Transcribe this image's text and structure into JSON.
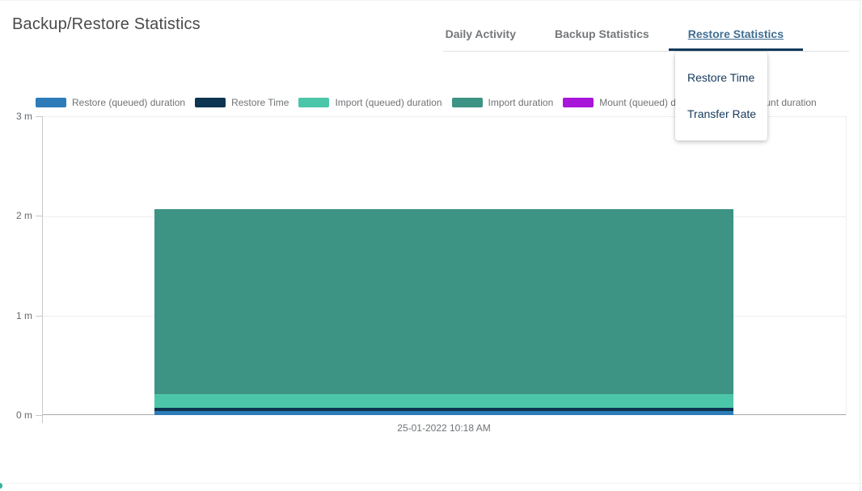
{
  "header": {
    "title": "Backup/Restore Statistics",
    "tabs": [
      {
        "label": "Daily Activity",
        "active": false
      },
      {
        "label": "Backup Statistics",
        "active": false
      },
      {
        "label": "Restore Statistics",
        "active": true
      }
    ]
  },
  "dropdown": {
    "items": [
      {
        "label": "Restore Time"
      },
      {
        "label": "Transfer Rate"
      }
    ]
  },
  "colors": {
    "active_tab": "#3f6e92",
    "ink_bar": "#12395c",
    "dropdown_text": "#16395c",
    "inactive_tab": "#75787b"
  },
  "chart_data": {
    "type": "bar",
    "stacked": true,
    "title": "",
    "xlabel": "",
    "ylabel": "",
    "x": [
      "25-01-2022 10:18 AM"
    ],
    "ylim": [
      0,
      3
    ],
    "yticks": [
      "3 m",
      "2 m",
      "1 m",
      "0 m"
    ],
    "grid": true,
    "legend_position": "top",
    "series": [
      {
        "name": "Restore (queued) duration",
        "color": "#2d7cb9",
        "values": [
          0.04
        ]
      },
      {
        "name": "Restore Time",
        "color": "#0d3450",
        "values": [
          0.03
        ]
      },
      {
        "name": "Import (queued) duration",
        "color": "#4cc6a8",
        "values": [
          0.14
        ]
      },
      {
        "name": "Import duration",
        "color": "#3d9384",
        "values": [
          1.86
        ]
      },
      {
        "name": "Mount (queued) duration",
        "color": "#a816d9",
        "values": [
          0
        ]
      },
      {
        "name": "Mount duration",
        "color": "#a816d9",
        "values": [
          0
        ]
      }
    ]
  }
}
